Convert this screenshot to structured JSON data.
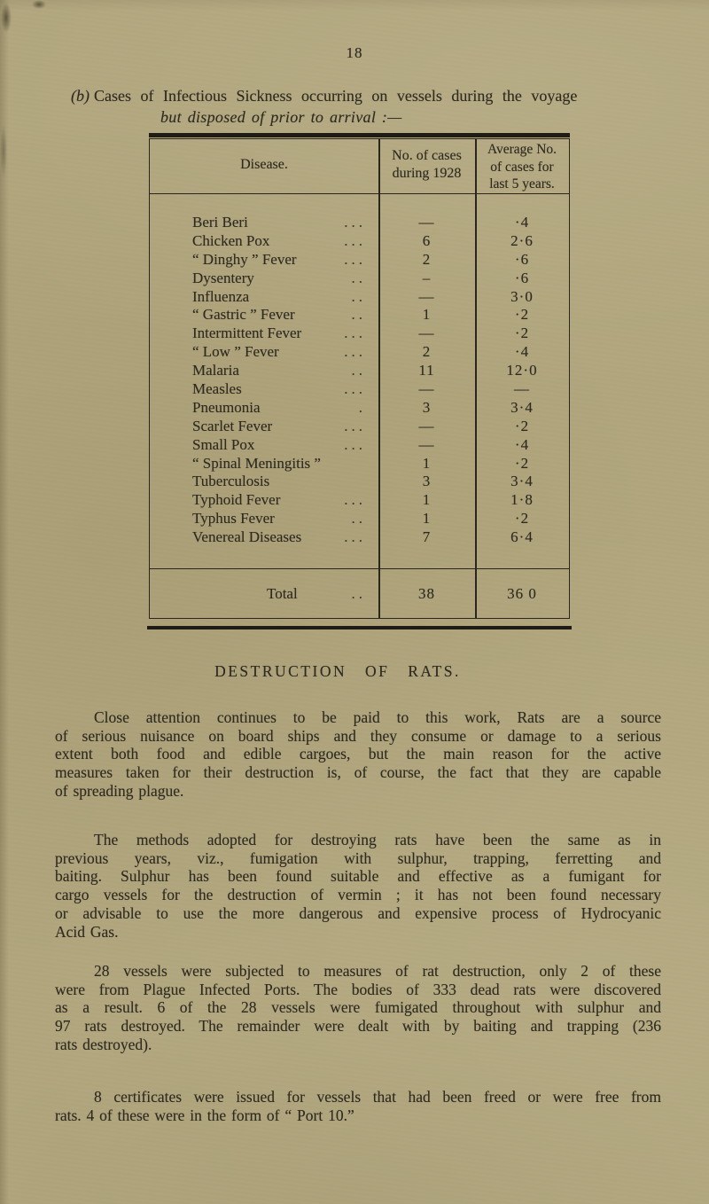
{
  "page": {
    "number": "18",
    "paper_color": "#b1a67d",
    "ink_color": "#2e2a20"
  },
  "section_b": {
    "label": "(b)",
    "title_line1": "Cases of Infectious Sickness occurring on vessels during the voyage",
    "title_line2": "but disposed of prior to arrival :—"
  },
  "table": {
    "headers": {
      "disease": "Disease.",
      "cases_line1": "No. of cases",
      "cases_line2": "during 1928",
      "avg_line1": "Average No.",
      "avg_line2": "of cases for",
      "avg_line3": "last 5 years."
    },
    "rows": [
      {
        "name": "Beri Beri",
        "dots": "...",
        "cases": "—",
        "avg": "·4"
      },
      {
        "name": "Chicken Pox",
        "dots": "...",
        "cases": "6",
        "avg": "2·6"
      },
      {
        "name": "“ Dinghy ” Fever",
        "dots": "...",
        "cases": "2",
        "avg": "·6"
      },
      {
        "name": "Dysentery",
        "dots": "..",
        "cases": "–",
        "avg": "·6"
      },
      {
        "name": "Influenza",
        "dots": "..",
        "cases": "—",
        "avg": "3·0"
      },
      {
        "name": "“ Gastric ” Fever",
        "dots": "..",
        "cases": "1",
        "avg": "·2"
      },
      {
        "name": "Intermittent Fever",
        "dots": "...",
        "cases": "—",
        "avg": "·2"
      },
      {
        "name": "“ Low ” Fever",
        "dots": "...",
        "cases": "2",
        "avg": "·4"
      },
      {
        "name": "Malaria",
        "dots": "..",
        "cases": "11",
        "avg": "12·0"
      },
      {
        "name": "Measles",
        "dots": "...",
        "cases": "—",
        "avg": "—"
      },
      {
        "name": "Pneumonia",
        "dots": ".",
        "cases": "3",
        "avg": "3·4"
      },
      {
        "name": "Scarlet Fever",
        "dots": "...",
        "cases": "—",
        "avg": "·2"
      },
      {
        "name": "Small Pox",
        "dots": "...",
        "cases": "—",
        "avg": "·4"
      },
      {
        "name": "“ Spinal Meningitis ”",
        "dots": "",
        "cases": "1",
        "avg": "·2"
      },
      {
        "name": "Tuberculosis",
        "dots": "",
        "cases": "3",
        "avg": "3·4"
      },
      {
        "name": "Typhoid Fever",
        "dots": "...",
        "cases": "1",
        "avg": "1·8"
      },
      {
        "name": "Typhus Fever",
        "dots": "..",
        "cases": "1",
        "avg": "·2"
      },
      {
        "name": "Venereal Diseases",
        "dots": "...",
        "cases": "7",
        "avg": "6·4"
      }
    ],
    "total": {
      "name": "Total",
      "dots": "..",
      "cases": "38",
      "avg": "36 0"
    }
  },
  "rats": {
    "heading": "DESTRUCTION OF RATS.",
    "paragraphs": [
      {
        "lines": [
          "Close attention continues to be paid to this work,  Rats are a source",
          "of serious nuisance on board ships and they consume or damage to a serious",
          "extent both food and edible cargoes, but the main reason for the active",
          "measures taken for their destruction is, of course, the fact that they are capable",
          "of spreading plague."
        ]
      },
      {
        "lines": [
          "The methods adopted for destroying rats have been the same as in",
          "previous years, viz., fumigation with sulphur, trapping, ferretting and",
          "baiting.  Sulphur has been found suitable and effective as a fumigant for",
          "cargo vessels for the destruction of vermin ; it has not been found necessary",
          "or advisable to use the more dangerous and expensive process of Hydrocyanic",
          "Acid Gas."
        ]
      },
      {
        "lines": [
          "28 vessels were subjected to measures of rat destruction, only 2 of these",
          "were from Plague Infected Ports.  The bodies of 333 dead rats were discovered",
          "as a result.  6 of the 28 vessels were fumigated throughout with sulphur and",
          "97 rats destroyed.  The remainder were dealt with by baiting and trapping (236",
          "rats destroyed)."
        ]
      },
      {
        "lines": [
          "8 certificates were issued for vessels that had been freed or were free from",
          "rats.  4 of these were in the form of “ Port 10.”"
        ]
      }
    ]
  }
}
